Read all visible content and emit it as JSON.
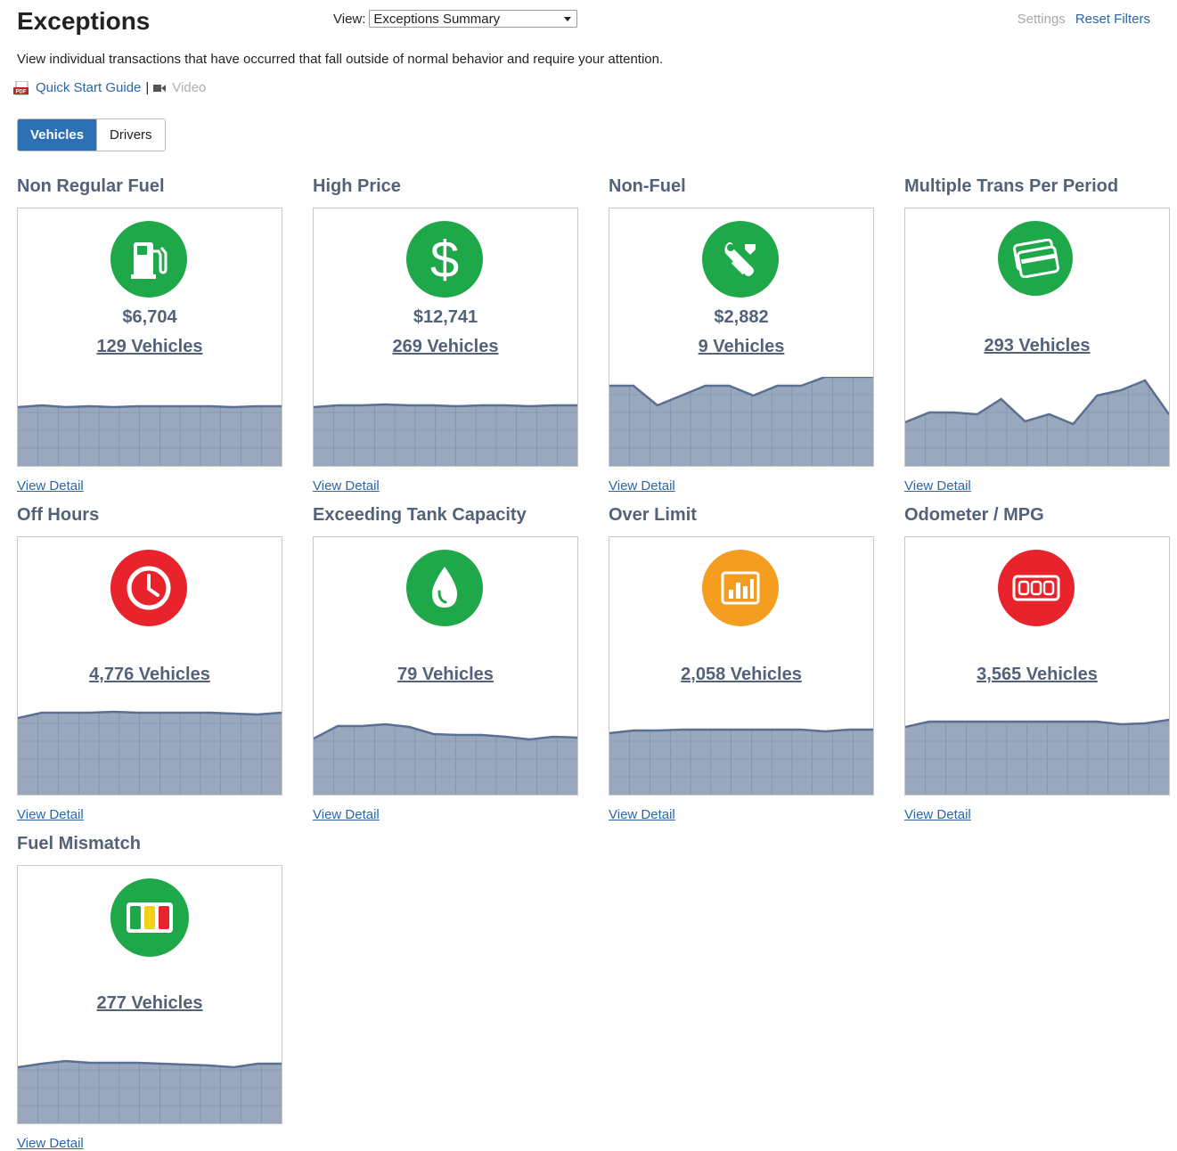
{
  "header": {
    "title": "Exceptions",
    "view_label": "View:",
    "view_value": "Exceptions Summary",
    "settings": "Settings",
    "reset_filters": "Reset Filters"
  },
  "description": "View individual transactions that have occurred that fall outside of normal behavior and require your attention.",
  "links": {
    "quick_start": "Quick Start Guide",
    "separator": "|",
    "video": "Video"
  },
  "tabs": {
    "vehicles": "Vehicles",
    "drivers": "Drivers",
    "active": "Vehicles"
  },
  "colors": {
    "green": "#1fa84a",
    "red": "#e8232b",
    "orange": "#f49d1f",
    "chart_fill": "#9aa8bd",
    "chart_line": "#5b6f93",
    "link": "#2a66ad"
  },
  "cards": [
    {
      "title": "Non Regular Fuel",
      "icon": "fuel-pump-icon",
      "color": "green",
      "amount": "$6,704",
      "count": "129 Vehicles",
      "detail": "View Detail",
      "trend": [
        0.66,
        0.68,
        0.66,
        0.67,
        0.66,
        0.67,
        0.67,
        0.67,
        0.67,
        0.66,
        0.67,
        0.67
      ]
    },
    {
      "title": "High Price",
      "icon": "dollar-icon",
      "color": "green",
      "amount": "$12,741",
      "count": "269 Vehicles",
      "detail": "View Detail",
      "trend": [
        0.66,
        0.68,
        0.68,
        0.69,
        0.68,
        0.68,
        0.67,
        0.68,
        0.68,
        0.67,
        0.68,
        0.68
      ]
    },
    {
      "title": "Non-Fuel",
      "icon": "wrench-icon",
      "color": "green",
      "amount": "$2,882",
      "count": "9 Vehicles",
      "detail": "View Detail",
      "trend": [
        0.9,
        0.9,
        0.68,
        0.79,
        0.9,
        0.9,
        0.79,
        0.9,
        0.9,
        1.0,
        1.0,
        1.0
      ]
    },
    {
      "title": "Multiple Trans Per Period",
      "icon": "credit-card-icon",
      "color": "green",
      "amount": "",
      "count": "293 Vehicles",
      "detail": "View Detail",
      "trend": [
        0.49,
        0.6,
        0.6,
        0.58,
        0.75,
        0.5,
        0.58,
        0.47,
        0.79,
        0.85,
        0.96,
        0.58
      ]
    },
    {
      "title": "Off Hours",
      "icon": "clock-icon",
      "color": "red",
      "amount": "",
      "count": "4,776 Vehicles",
      "detail": "View Detail",
      "trend": [
        0.86,
        0.92,
        0.92,
        0.92,
        0.93,
        0.92,
        0.92,
        0.92,
        0.92,
        0.91,
        0.9,
        0.92
      ]
    },
    {
      "title": "Exceeding Tank Capacity",
      "icon": "water-drop-icon",
      "color": "green",
      "amount": "",
      "count": "79 Vehicles",
      "detail": "View Detail",
      "trend": [
        0.63,
        0.77,
        0.77,
        0.79,
        0.76,
        0.68,
        0.67,
        0.67,
        0.65,
        0.62,
        0.65,
        0.64
      ]
    },
    {
      "title": "Over Limit",
      "icon": "bar-chart-icon",
      "color": "orange",
      "amount": "",
      "count": "2,058 Vehicles",
      "detail": "View Detail",
      "trend": [
        0.69,
        0.72,
        0.72,
        0.73,
        0.73,
        0.73,
        0.73,
        0.73,
        0.73,
        0.71,
        0.73,
        0.73
      ]
    },
    {
      "title": "Odometer / MPG",
      "icon": "odometer-icon",
      "color": "red",
      "amount": "",
      "count": "3,565 Vehicles",
      "detail": "View Detail",
      "trend": [
        0.76,
        0.82,
        0.82,
        0.82,
        0.82,
        0.82,
        0.82,
        0.82,
        0.82,
        0.79,
        0.8,
        0.84
      ]
    },
    {
      "title": "Fuel Mismatch",
      "icon": "fuel-grade-icon",
      "color": "green",
      "amount": "",
      "count": "277 Vehicles",
      "detail": "View Detail",
      "trend": [
        0.63,
        0.67,
        0.7,
        0.68,
        0.68,
        0.68,
        0.67,
        0.66,
        0.65,
        0.63,
        0.67,
        0.67
      ]
    }
  ]
}
